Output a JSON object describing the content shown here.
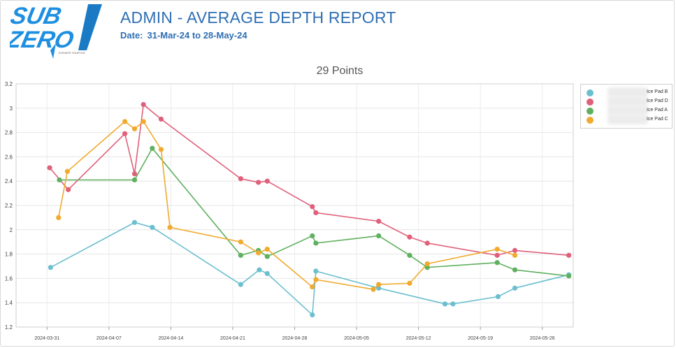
{
  "header": {
    "logo_text_line1": "SUB",
    "logo_text_line2": "ZERO",
    "logo_tagline": "ELEVATE YOUR ICE",
    "title": "ADMIN - AVERAGE DEPTH REPORT",
    "date_label": "Date:",
    "date_range": "31-Mar-24 to 28-May-24"
  },
  "colors": {
    "brand_blue": "#2f6fb3",
    "logo_blue": "#1e8fe0",
    "ice_pad_b": "#6bbfcf",
    "ice_pad_d": "#e0607a",
    "ice_pad_a": "#5fb05f",
    "ice_pad_c": "#f0aa2e"
  },
  "chart_data": {
    "type": "line",
    "title": "29 Points",
    "xlabel": "",
    "ylabel": "",
    "ylim": [
      1.2,
      3.2
    ],
    "yticks": [
      "1.2",
      "1.4",
      "1.6",
      "1.8",
      "2",
      "2.2",
      "2.4",
      "2.6",
      "2.8",
      "3",
      "3.2"
    ],
    "x_tick_labels": [
      "2024-03-31",
      "2024-04-07",
      "2024-04-14",
      "2024-04-21",
      "2024-04-28",
      "2024-05-05",
      "2024-05-12",
      "2024-05-19",
      "2024-05-26"
    ],
    "x_tick_days": [
      0,
      7,
      14,
      21,
      28,
      35,
      42,
      49,
      56
    ],
    "xlim_days": [
      -3.5,
      59.5
    ],
    "x_origin_date": "2024-03-31",
    "grid": true,
    "legend_position": "right",
    "series": [
      {
        "name": "Ice Pad B",
        "color": "#6bbfcf",
        "x_days": [
          0.4,
          9.9,
          11.9,
          21.9,
          24.0,
          24.9,
          30.0,
          30.4,
          37.5,
          45.0,
          45.9,
          51.0,
          52.9,
          59.0
        ],
        "values": [
          1.69,
          2.06,
          2.02,
          1.55,
          1.67,
          1.64,
          1.3,
          1.66,
          1.52,
          1.39,
          1.39,
          1.45,
          1.52,
          1.63
        ]
      },
      {
        "name": "Ice Pad D",
        "color": "#e0607a",
        "x_days": [
          0.3,
          2.4,
          8.8,
          9.9,
          10.9,
          12.9,
          21.9,
          23.9,
          24.9,
          30.0,
          30.4,
          37.5,
          41.0,
          43.0,
          50.9,
          52.9,
          59.0
        ],
        "values": [
          2.51,
          2.33,
          2.79,
          2.46,
          3.03,
          2.91,
          2.42,
          2.39,
          2.4,
          2.19,
          2.14,
          2.07,
          1.94,
          1.89,
          1.79,
          1.83,
          1.79
        ]
      },
      {
        "name": "Ice Pad A",
        "color": "#5fb05f",
        "x_days": [
          1.4,
          9.9,
          11.9,
          21.9,
          23.9,
          24.9,
          30.0,
          30.4,
          37.5,
          41.0,
          43.0,
          50.9,
          52.9,
          59.0
        ],
        "values": [
          2.41,
          2.41,
          2.67,
          1.79,
          1.83,
          1.78,
          1.95,
          1.89,
          1.95,
          1.79,
          1.69,
          1.73,
          1.67,
          1.62
        ]
      },
      {
        "name": "Ice Pad C",
        "color": "#f0aa2e",
        "x_days": [
          1.3,
          2.3,
          8.8,
          9.9,
          10.9,
          12.9,
          13.9,
          21.9,
          23.9,
          24.9,
          30.0,
          30.4,
          36.9,
          37.5,
          41.0,
          43.0,
          50.9,
          52.9
        ],
        "values": [
          2.1,
          2.48,
          2.89,
          2.83,
          2.89,
          2.66,
          2.02,
          1.9,
          1.81,
          1.84,
          1.53,
          1.59,
          1.51,
          1.55,
          1.56,
          1.72,
          1.84,
          1.79
        ]
      }
    ]
  }
}
